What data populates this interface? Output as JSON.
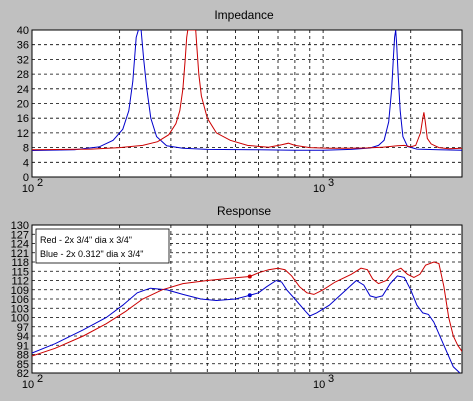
{
  "chart_data": [
    {
      "type": "line",
      "title": "Impedance",
      "xscale": "log",
      "xlim": [
        100,
        3000
      ],
      "ylim": [
        0,
        40
      ],
      "grid": true,
      "x_ticks": [
        100,
        1000
      ],
      "x_tick_labels": [
        {
          "base": "10",
          "exp": "2"
        },
        {
          "base": "10",
          "exp": "3"
        }
      ],
      "y_ticks": [
        0,
        4,
        8,
        12,
        16,
        20,
        24,
        28,
        32,
        36,
        40
      ],
      "y_tick_labels": [
        "0",
        "4",
        "8",
        "12",
        "16",
        "20",
        "24",
        "28",
        "32",
        "36",
        "40"
      ],
      "series": [
        {
          "color": "#0000cc",
          "points": [
            [
              100,
              7.2
            ],
            [
              140,
              7.4
            ],
            [
              170,
              8.2
            ],
            [
              190,
              10
            ],
            [
              205,
              13
            ],
            [
              215,
              18
            ],
            [
              222,
              26
            ],
            [
              228,
              38
            ],
            [
              232,
              40
            ],
            [
              237,
              40
            ],
            [
              242,
              32
            ],
            [
              248,
              24
            ],
            [
              256,
              16
            ],
            [
              268,
              11
            ],
            [
              290,
              8.5
            ],
            [
              330,
              7.8
            ],
            [
              400,
              7.5
            ],
            [
              600,
              7.4
            ],
            [
              800,
              7.3
            ],
            [
              1000,
              7.3
            ],
            [
              1250,
              7.5
            ],
            [
              1450,
              7.9
            ],
            [
              1550,
              8.6
            ],
            [
              1620,
              10
            ],
            [
              1680,
              15
            ],
            [
              1720,
              24
            ],
            [
              1745,
              33
            ],
            [
              1760,
              38
            ],
            [
              1775,
              40
            ],
            [
              1790,
              36
            ],
            [
              1810,
              28
            ],
            [
              1840,
              18
            ],
            [
              1880,
              11
            ],
            [
              1950,
              8.3
            ],
            [
              2100,
              7.6
            ],
            [
              2500,
              7.4
            ],
            [
              3000,
              7.3
            ]
          ]
        },
        {
          "color": "#cc0000",
          "points": [
            [
              100,
              7.4
            ],
            [
              160,
              7.6
            ],
            [
              200,
              8
            ],
            [
              240,
              8.6
            ],
            [
              270,
              9.6
            ],
            [
              295,
              11.5
            ],
            [
              312,
              14.5
            ],
            [
              322,
              18
            ],
            [
              330,
              24
            ],
            [
              336,
              32
            ],
            [
              340,
              38
            ],
            [
              343,
              40
            ],
            [
              365,
              40
            ],
            [
              368,
              36
            ],
            [
              374,
              28
            ],
            [
              382,
              22
            ],
            [
              400,
              16
            ],
            [
              430,
              12
            ],
            [
              480,
              10
            ],
            [
              550,
              8.6
            ],
            [
              650,
              8.1
            ],
            [
              720,
              8.8
            ],
            [
              760,
              9.2
            ],
            [
              800,
              8.6
            ],
            [
              900,
              8
            ],
            [
              1050,
              7.8
            ],
            [
              1200,
              7.8
            ],
            [
              1400,
              7.9
            ],
            [
              1600,
              8.1
            ],
            [
              1800,
              8.5
            ],
            [
              1900,
              8.6
            ],
            [
              2000,
              8.2
            ],
            [
              2080,
              8.6
            ],
            [
              2160,
              12
            ],
            [
              2200,
              16
            ],
            [
              2220,
              17.6
            ],
            [
              2245,
              15
            ],
            [
              2280,
              10.5
            ],
            [
              2350,
              9
            ],
            [
              2500,
              8
            ],
            [
              2700,
              7.7
            ],
            [
              3000,
              7.8
            ]
          ]
        }
      ]
    },
    {
      "type": "line",
      "title": "Response",
      "xscale": "log",
      "xlim": [
        100,
        3000
      ],
      "ylim": [
        82,
        130
      ],
      "grid": true,
      "x_ticks": [
        100,
        1000
      ],
      "x_tick_labels": [
        {
          "base": "10",
          "exp": "2"
        },
        {
          "base": "10",
          "exp": "3"
        }
      ],
      "y_ticks": [
        82,
        85,
        88,
        91,
        94,
        97,
        100,
        103,
        106,
        109,
        112,
        115,
        118,
        121,
        124,
        127,
        130
      ],
      "y_tick_labels": [
        "82",
        "85",
        "88",
        "91",
        "94",
        "97",
        "100",
        "103",
        "106",
        "109",
        "112",
        "115",
        "118",
        "121",
        "124",
        "127",
        "130"
      ],
      "legend": [
        "Red - 2x 3/4\" dia x 3/4\"",
        "Blue - 2x 0.312\" dia x 3/4\""
      ],
      "legend_position": "top-left",
      "series": [
        {
          "color": "#0000cc",
          "points": [
            [
              100,
              88.5
            ],
            [
              120,
              91.5
            ],
            [
              150,
              96
            ],
            [
              180,
              100
            ],
            [
              205,
              104
            ],
            [
              230,
              108
            ],
            [
              255,
              109.5
            ],
            [
              290,
              109
            ],
            [
              330,
              107.5
            ],
            [
              380,
              106
            ],
            [
              430,
              105.5
            ],
            [
              500,
              106
            ],
            [
              560,
              107.2
            ],
            [
              600,
              108
            ],
            [
              640,
              110
            ],
            [
              690,
              112
            ],
            [
              720,
              111.5
            ],
            [
              750,
              109
            ],
            [
              800,
              106
            ],
            [
              870,
              102
            ],
            [
              900,
              100.5
            ],
            [
              950,
              101.5
            ],
            [
              1050,
              104
            ],
            [
              1200,
              109
            ],
            [
              1300,
              112
            ],
            [
              1380,
              110.5
            ],
            [
              1450,
              107
            ],
            [
              1520,
              106.5
            ],
            [
              1600,
              107
            ],
            [
              1700,
              111
            ],
            [
              1800,
              113.5
            ],
            [
              1900,
              113
            ],
            [
              2000,
              109
            ],
            [
              2100,
              104
            ],
            [
              2200,
              101.5
            ],
            [
              2300,
              101
            ],
            [
              2400,
              98.5
            ],
            [
              2600,
              91
            ],
            [
              2800,
              84
            ],
            [
              2950,
              82
            ]
          ]
        },
        {
          "color": "#cc0000",
          "points": [
            [
              100,
              87.5
            ],
            [
              120,
              90
            ],
            [
              150,
              94
            ],
            [
              180,
              98
            ],
            [
              210,
              102
            ],
            [
              240,
              106
            ],
            [
              280,
              109
            ],
            [
              330,
              111
            ],
            [
              400,
              112
            ],
            [
              480,
              112.7
            ],
            [
              560,
              113.3
            ],
            [
              600,
              114.5
            ],
            [
              650,
              115.5
            ],
            [
              700,
              116
            ],
            [
              740,
              115.5
            ],
            [
              780,
              113.5
            ],
            [
              830,
              110
            ],
            [
              880,
              108
            ],
            [
              930,
              107.5
            ],
            [
              1000,
              109
            ],
            [
              1100,
              111.5
            ],
            [
              1250,
              114
            ],
            [
              1350,
              116
            ],
            [
              1420,
              115.5
            ],
            [
              1480,
              112.5
            ],
            [
              1550,
              111
            ],
            [
              1650,
              112
            ],
            [
              1750,
              115
            ],
            [
              1850,
              116
            ],
            [
              1950,
              114
            ],
            [
              2050,
              113
            ],
            [
              2150,
              114
            ],
            [
              2250,
              117
            ],
            [
              2400,
              118
            ],
            [
              2500,
              117.5
            ],
            [
              2600,
              110
            ],
            [
              2700,
              100
            ],
            [
              2800,
              94
            ],
            [
              2900,
              91
            ],
            [
              3000,
              89
            ]
          ]
        }
      ]
    }
  ]
}
